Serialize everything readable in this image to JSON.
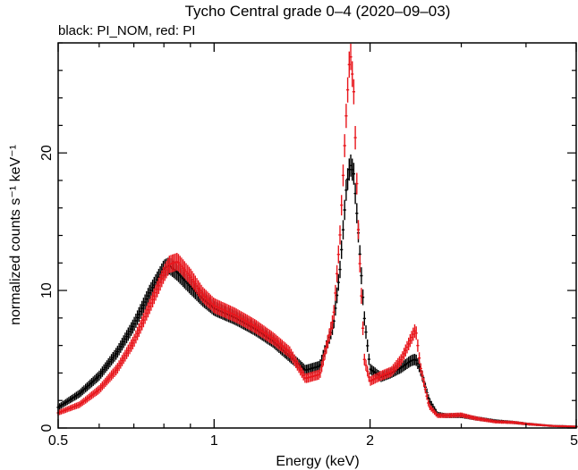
{
  "chart_data": {
    "type": "line",
    "title": "Tycho Central grade 0–4 (2020–09–03)",
    "subtitle": "black: PI_NOM, red: PI",
    "xlabel": "Energy (keV)",
    "ylabel": "normalized counts s⁻¹ keV⁻¹",
    "xscale": "log",
    "xlim": [
      0.5,
      5
    ],
    "ylim": [
      0,
      28
    ],
    "x_ticks": [
      {
        "value": 0.5,
        "label": "0.5"
      },
      {
        "value": 1,
        "label": "1"
      },
      {
        "value": 2,
        "label": "2"
      },
      {
        "value": 5,
        "label": "5"
      }
    ],
    "y_ticks": [
      {
        "value": 0,
        "label": "0"
      },
      {
        "value": 10,
        "label": "10"
      },
      {
        "value": 20,
        "label": "20"
      }
    ],
    "grid": false,
    "series": [
      {
        "name": "PI_NOM",
        "color": "#000000",
        "x": [
          0.5,
          0.55,
          0.6,
          0.65,
          0.7,
          0.75,
          0.8,
          0.82,
          0.85,
          0.9,
          0.95,
          1.0,
          1.1,
          1.2,
          1.3,
          1.4,
          1.5,
          1.6,
          1.7,
          1.75,
          1.8,
          1.83,
          1.86,
          1.9,
          1.95,
          2.0,
          2.1,
          2.2,
          2.3,
          2.4,
          2.45,
          2.5,
          2.6,
          2.7,
          2.8,
          3.0,
          3.2,
          3.5,
          3.8,
          4.0,
          4.5,
          5.0
        ],
        "y": [
          1.5,
          2.5,
          3.8,
          5.5,
          7.5,
          9.8,
          11.6,
          11.8,
          11.3,
          10.3,
          9.4,
          8.7,
          8.0,
          7.2,
          6.3,
          5.2,
          4.2,
          4.5,
          7.5,
          11.5,
          17.5,
          19.2,
          18.5,
          14.0,
          8.0,
          4.3,
          3.7,
          4.0,
          4.4,
          4.9,
          5.0,
          4.3,
          2.0,
          1.0,
          0.9,
          0.9,
          0.7,
          0.5,
          0.4,
          0.3,
          0.15,
          0.1
        ]
      },
      {
        "name": "PI",
        "color": "#e8161c",
        "x": [
          0.5,
          0.55,
          0.6,
          0.65,
          0.7,
          0.75,
          0.8,
          0.82,
          0.85,
          0.9,
          0.95,
          1.0,
          1.1,
          1.2,
          1.3,
          1.4,
          1.5,
          1.6,
          1.7,
          1.75,
          1.8,
          1.83,
          1.86,
          1.9,
          1.95,
          2.0,
          2.1,
          2.2,
          2.3,
          2.4,
          2.45,
          2.5,
          2.6,
          2.7,
          2.8,
          3.0,
          3.2,
          3.5,
          3.8,
          4.0,
          4.5,
          5.0
        ],
        "y": [
          1.1,
          1.7,
          2.8,
          4.3,
          6.3,
          8.8,
          11.2,
          11.9,
          12.1,
          11.0,
          9.7,
          8.9,
          8.2,
          7.4,
          6.5,
          5.5,
          3.6,
          3.9,
          8.0,
          14.0,
          23.0,
          27.5,
          24.5,
          14.0,
          5.0,
          3.4,
          3.8,
          4.1,
          5.0,
          6.5,
          7.2,
          4.5,
          1.6,
          0.9,
          0.9,
          0.95,
          0.7,
          0.45,
          0.4,
          0.3,
          0.15,
          0.1
        ]
      }
    ]
  }
}
